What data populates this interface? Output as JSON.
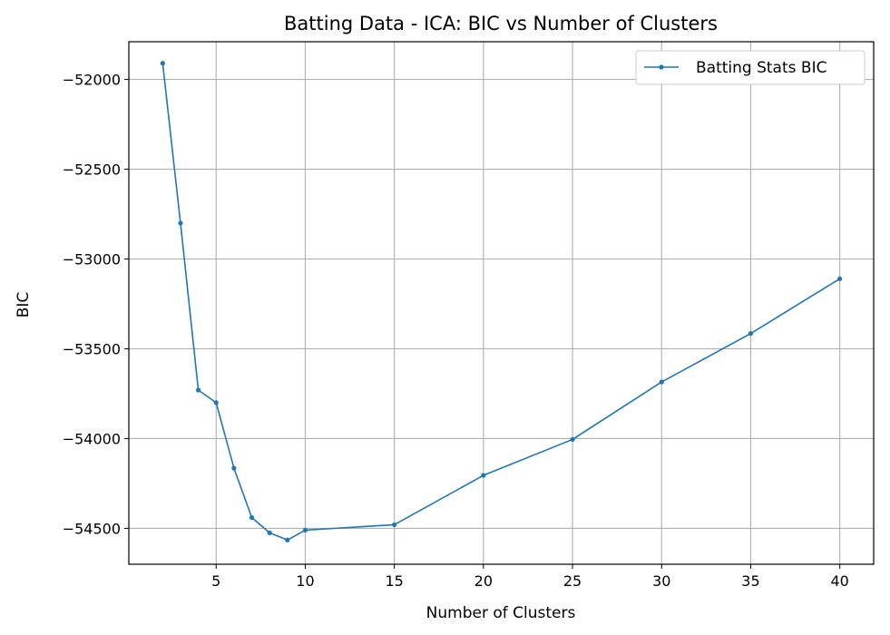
{
  "chart_data": {
    "type": "line",
    "title": "Batting Data - ICA: BIC vs Number of Clusters",
    "xlabel": "Number of Clusters",
    "ylabel": "BIC",
    "x_ticks": [
      5,
      10,
      15,
      20,
      25,
      30,
      35,
      40
    ],
    "y_ticks": [
      -52000,
      -52500,
      -53000,
      -53500,
      -54000,
      -54500
    ],
    "y_tick_labels": [
      "−52000",
      "−52500",
      "−53000",
      "−53500",
      "−54000",
      "−54500"
    ],
    "xlim": [
      0.1,
      41.9
    ],
    "ylim": [
      -54700,
      -51790
    ],
    "grid": true,
    "legend_position": "top-right",
    "series": [
      {
        "name": "Batting Stats BIC",
        "color": "#1f77b4",
        "marker": "circle",
        "x": [
          2,
          3,
          4,
          5,
          6,
          7,
          8,
          9,
          10,
          15,
          20,
          25,
          30,
          35,
          40
        ],
        "y": [
          -51910,
          -52800,
          -53730,
          -53800,
          -54165,
          -54440,
          -54525,
          -54565,
          -54510,
          -54480,
          -54205,
          -54005,
          -53685,
          -53415,
          -53110
        ]
      }
    ]
  }
}
